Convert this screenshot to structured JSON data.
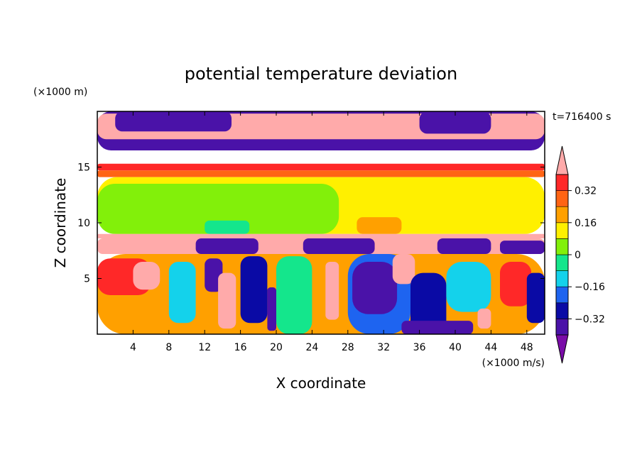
{
  "chart_data": {
    "type": "heatmap",
    "title": "potential temperature deviation",
    "time_label": "t=716400 s",
    "xlabel": "X coordinate",
    "ylabel": "Z coordinate",
    "x_unit_label": "(×1000 m/s)",
    "y_unit_label": "(×1000 m)",
    "xlim": [
      0,
      50
    ],
    "ylim": [
      0,
      20
    ],
    "x_ticks": [
      4,
      8,
      12,
      16,
      20,
      24,
      28,
      32,
      36,
      40,
      44,
      48
    ],
    "y_ticks": [
      5,
      10,
      15
    ],
    "colorbar": {
      "levels": [
        -0.4,
        -0.32,
        -0.24,
        -0.16,
        -0.08,
        0,
        0.08,
        0.16,
        0.24,
        0.32,
        0.4
      ],
      "labeled_levels": [
        "0.32",
        "0.16",
        "0",
        "−0.16",
        "−0.32"
      ],
      "labeled_values": [
        0.32,
        0.16,
        0,
        -0.16,
        -0.32
      ],
      "colors_low_to_high": [
        "#7a0ca8",
        "#4a12a8",
        "#0a0aa5",
        "#1e64f0",
        "#14d2eb",
        "#14e68c",
        "#82f00a",
        "#fff000",
        "#ffa000",
        "#ff6414",
        "#ff2828",
        "#ffaaaa"
      ],
      "extends": "both"
    },
    "regions": [
      {
        "level": -0.4,
        "x0": 0,
        "x1": 50,
        "z0": 16.5,
        "z1": 20
      },
      {
        "level": 0.4,
        "x0": 0,
        "x1": 50,
        "z0": 17.5,
        "z1": 19.8
      },
      {
        "level": -0.4,
        "x0": 2,
        "x1": 15,
        "z0": 18.2,
        "z1": 20
      },
      {
        "level": -0.4,
        "x0": 36,
        "x1": 44,
        "z0": 18.0,
        "z1": 20
      },
      {
        "level": 0.32,
        "x0": 0,
        "x1": 50,
        "z0": 14.7,
        "z1": 15.3
      },
      {
        "level": 0.24,
        "x0": 0,
        "x1": 50,
        "z0": 14.1,
        "z1": 14.7
      },
      {
        "level": 0.08,
        "x0": 0,
        "x1": 50,
        "z0": 9.0,
        "z1": 14.1
      },
      {
        "level": 0.0,
        "x0": 0,
        "x1": 27,
        "z0": 9.0,
        "z1": 13.5
      },
      {
        "level": -0.08,
        "x0": 12,
        "x1": 17,
        "z0": 9.0,
        "z1": 10.2
      },
      {
        "level": 0.16,
        "x0": 29,
        "x1": 34,
        "z0": 9.0,
        "z1": 10.5
      },
      {
        "level": 0.4,
        "x0": 0,
        "x1": 50,
        "z0": 8.6,
        "z1": 9.0
      },
      {
        "level": 0.4,
        "x0": 0,
        "x1": 50,
        "z0": 7.2,
        "z1": 8.6
      },
      {
        "level": -0.4,
        "x0": 11,
        "x1": 18,
        "z0": 7.2,
        "z1": 8.6
      },
      {
        "level": -0.4,
        "x0": 23,
        "x1": 31,
        "z0": 7.2,
        "z1": 8.6
      },
      {
        "level": -0.4,
        "x0": 38,
        "x1": 44,
        "z0": 7.2,
        "z1": 8.6
      },
      {
        "level": -0.4,
        "x0": 45,
        "x1": 50,
        "z0": 7.2,
        "z1": 8.4
      },
      {
        "level": 0.16,
        "x0": 0,
        "x1": 50,
        "z0": 0,
        "z1": 7.2
      },
      {
        "level": 0.32,
        "x0": 0,
        "x1": 6,
        "z0": 3.5,
        "z1": 6.8
      },
      {
        "level": 0.4,
        "x0": 4,
        "x1": 7,
        "z0": 4.0,
        "z1": 6.5
      },
      {
        "level": -0.16,
        "x0": 8,
        "x1": 11,
        "z0": 1.0,
        "z1": 6.5
      },
      {
        "level": -0.4,
        "x0": 12,
        "x1": 14,
        "z0": 3.8,
        "z1": 6.8
      },
      {
        "level": 0.4,
        "x0": 13.5,
        "x1": 15.5,
        "z0": 0.5,
        "z1": 5.5
      },
      {
        "level": -0.32,
        "x0": 16,
        "x1": 19,
        "z0": 1.0,
        "z1": 7.0
      },
      {
        "level": -0.4,
        "x0": 19,
        "x1": 20,
        "z0": 0.3,
        "z1": 4.2
      },
      {
        "level": -0.08,
        "x0": 20,
        "x1": 24,
        "z0": 0,
        "z1": 7.0
      },
      {
        "level": 0.4,
        "x0": 25.5,
        "x1": 27,
        "z0": 1.3,
        "z1": 6.5
      },
      {
        "level": -0.24,
        "x0": 28,
        "x1": 35,
        "z0": 0,
        "z1": 7.2
      },
      {
        "level": -0.4,
        "x0": 28.5,
        "x1": 33.5,
        "z0": 1.8,
        "z1": 6.5
      },
      {
        "level": 0.4,
        "x0": 33,
        "x1": 35.5,
        "z0": 4.5,
        "z1": 7.2
      },
      {
        "level": -0.32,
        "x0": 35,
        "x1": 39,
        "z0": 0,
        "z1": 5.5
      },
      {
        "level": -0.4,
        "x0": 34,
        "x1": 42,
        "z0": 0,
        "z1": 1.2
      },
      {
        "level": -0.16,
        "x0": 39,
        "x1": 44,
        "z0": 2.0,
        "z1": 6.5
      },
      {
        "level": 0.4,
        "x0": 42.5,
        "x1": 44,
        "z0": 0.5,
        "z1": 2.3
      },
      {
        "level": 0.32,
        "x0": 45,
        "x1": 48.5,
        "z0": 2.5,
        "z1": 6.5
      },
      {
        "level": -0.32,
        "x0": 48,
        "x1": 50,
        "z0": 1.0,
        "z1": 5.5
      }
    ]
  }
}
